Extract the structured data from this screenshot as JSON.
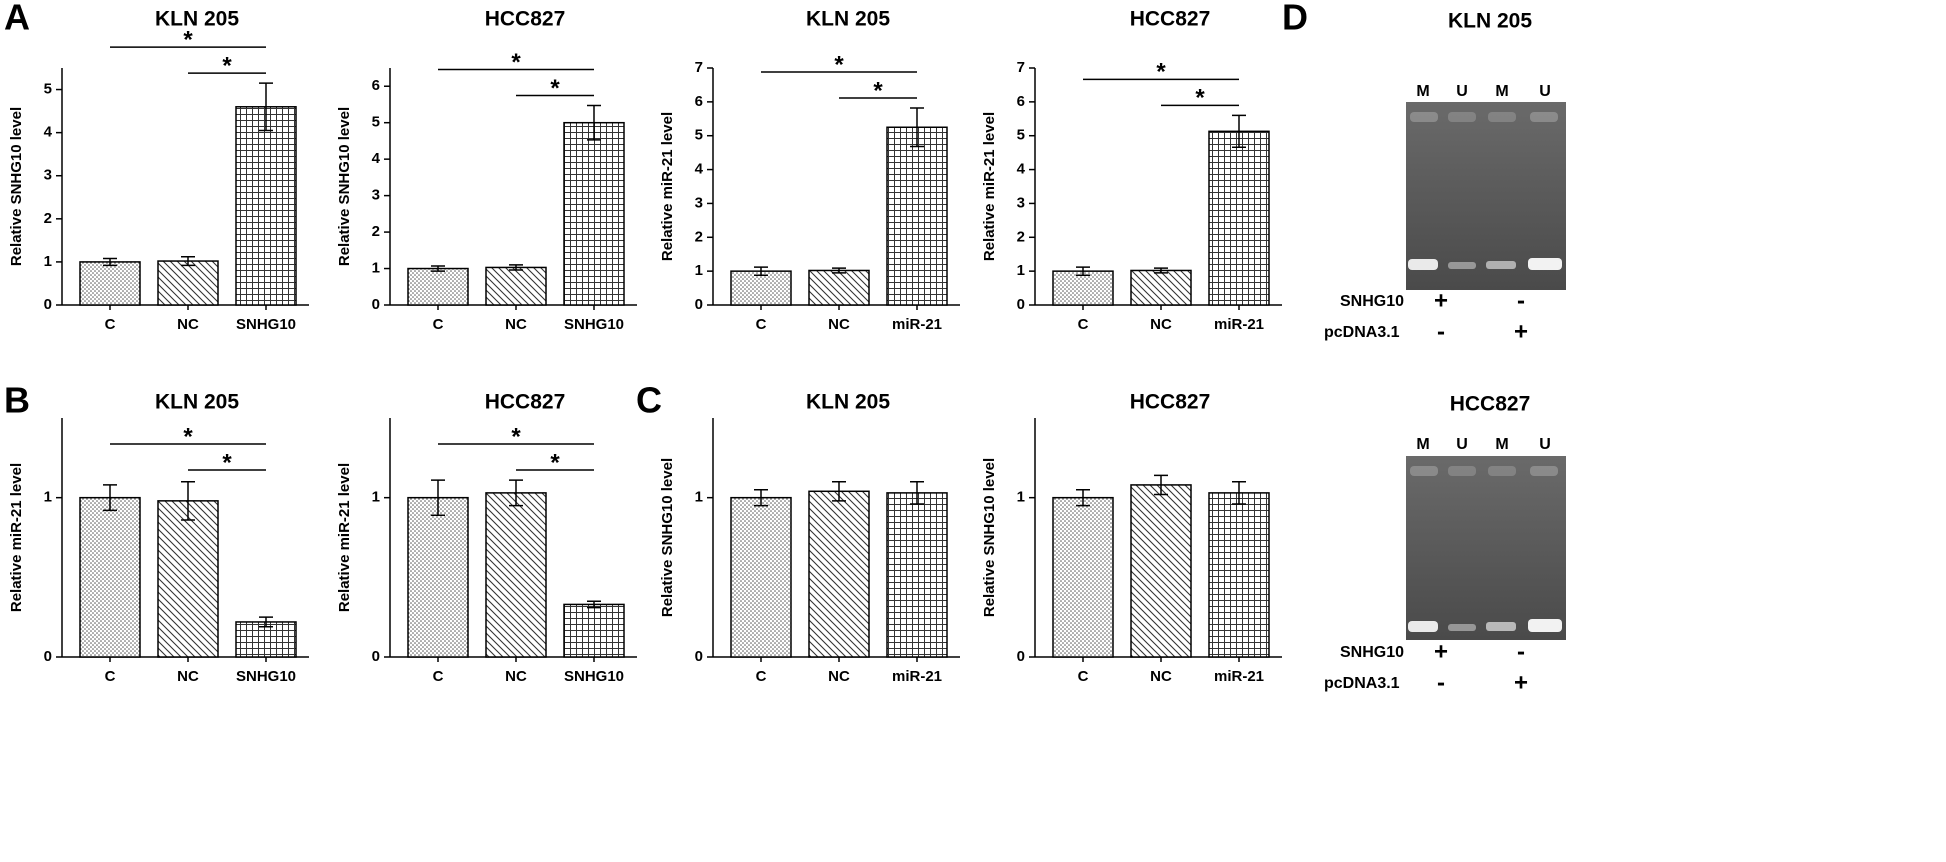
{
  "panels": [
    "A",
    "B",
    "C",
    "D"
  ],
  "chart_data": [
    {
      "type": "bar",
      "title": "KLN 205",
      "y_label": "Relative SNHG10 level",
      "categories": [
        "C",
        "NC",
        "SNHG10"
      ],
      "values": [
        1.0,
        1.02,
        4.6
      ],
      "errors": [
        0.08,
        0.1,
        0.55
      ],
      "ylim": [
        0,
        5.5
      ],
      "yticks": [
        0,
        1,
        2,
        3,
        4,
        5
      ],
      "patterns": [
        "dots",
        "diagonal",
        "grid"
      ],
      "annotations": [
        {
          "text": "*",
          "from": 0,
          "to": 2
        },
        {
          "text": "*",
          "from": 1,
          "to": 2
        }
      ]
    },
    {
      "type": "bar",
      "title": "HCC827",
      "y_label": "Relative SNHG10 level",
      "categories": [
        "C",
        "NC",
        "SNHG10"
      ],
      "values": [
        1.0,
        1.03,
        5.0
      ],
      "errors": [
        0.07,
        0.07,
        0.47
      ],
      "ylim": [
        0,
        6.5
      ],
      "yticks": [
        0,
        1,
        2,
        3,
        4,
        5,
        6
      ],
      "patterns": [
        "dots",
        "diagonal",
        "grid"
      ],
      "annotations": [
        {
          "text": "*",
          "from": 0,
          "to": 2
        },
        {
          "text": "*",
          "from": 1,
          "to": 2
        }
      ]
    },
    {
      "type": "bar",
      "title": "KLN 205",
      "y_label": "Relative miR-21 level",
      "categories": [
        "C",
        "NC",
        "miR-21"
      ],
      "values": [
        1.0,
        1.02,
        5.25
      ],
      "errors": [
        0.12,
        0.07,
        0.57
      ],
      "ylim": [
        0,
        7
      ],
      "yticks": [
        0,
        1,
        2,
        3,
        4,
        5,
        6,
        7
      ],
      "patterns": [
        "dots",
        "diagonal",
        "grid"
      ],
      "annotations": [
        {
          "text": "*",
          "from": 0,
          "to": 2
        },
        {
          "text": "*",
          "from": 1,
          "to": 2
        }
      ]
    },
    {
      "type": "bar",
      "title": "HCC827",
      "y_label": "Relative miR-21 level",
      "categories": [
        "C",
        "NC",
        "miR-21"
      ],
      "values": [
        1.0,
        1.02,
        5.13
      ],
      "errors": [
        0.12,
        0.07,
        0.47
      ],
      "ylim": [
        0,
        7
      ],
      "yticks": [
        0,
        1,
        2,
        3,
        4,
        5,
        6,
        7
      ],
      "patterns": [
        "dots",
        "diagonal",
        "grid"
      ],
      "annotations": [
        {
          "text": "*",
          "from": 0,
          "to": 2
        },
        {
          "text": "*",
          "from": 1,
          "to": 2
        }
      ]
    },
    {
      "type": "bar",
      "title": "KLN 205",
      "y_label": "Relative miR-21 level",
      "categories": [
        "C",
        "NC",
        "SNHG10"
      ],
      "values": [
        1.0,
        0.98,
        0.22
      ],
      "errors": [
        0.08,
        0.12,
        0.03
      ],
      "ylim": [
        0,
        1.5
      ],
      "yticks": [
        0,
        1
      ],
      "patterns": [
        "dots",
        "diagonal",
        "grid"
      ],
      "annotations": [
        {
          "text": "*",
          "from": 0,
          "to": 2
        },
        {
          "text": "*",
          "from": 1,
          "to": 2
        }
      ]
    },
    {
      "type": "bar",
      "title": "HCC827",
      "y_label": "Relative miR-21 level",
      "categories": [
        "C",
        "NC",
        "SNHG10"
      ],
      "values": [
        1.0,
        1.03,
        0.33
      ],
      "errors": [
        0.11,
        0.08,
        0.02
      ],
      "ylim": [
        0,
        1.5
      ],
      "yticks": [
        0,
        1
      ],
      "patterns": [
        "dots",
        "diagonal",
        "grid"
      ],
      "annotations": [
        {
          "text": "*",
          "from": 0,
          "to": 2
        },
        {
          "text": "*",
          "from": 1,
          "to": 2
        }
      ]
    },
    {
      "type": "bar",
      "title": "KLN 205",
      "y_label": "Relative SNHG10 level",
      "categories": [
        "C",
        "NC",
        "miR-21"
      ],
      "values": [
        1.0,
        1.04,
        1.03
      ],
      "errors": [
        0.05,
        0.06,
        0.07
      ],
      "ylim": [
        0,
        1.5
      ],
      "yticks": [
        0,
        1
      ],
      "patterns": [
        "dots",
        "diagonal",
        "grid"
      ],
      "annotations": []
    },
    {
      "type": "bar",
      "title": "HCC827",
      "y_label": "Relative SNHG10 level",
      "categories": [
        "C",
        "NC",
        "miR-21"
      ],
      "values": [
        1.0,
        1.08,
        1.03
      ],
      "errors": [
        0.05,
        0.06,
        0.07
      ],
      "ylim": [
        0,
        1.5
      ],
      "yticks": [
        0,
        1
      ],
      "patterns": [
        "dots",
        "diagonal",
        "grid"
      ],
      "annotations": []
    }
  ],
  "gels": [
    {
      "title": "KLN 205",
      "lanes": [
        "M",
        "U",
        "M",
        "U"
      ],
      "rows": [
        {
          "label": "SNHG10",
          "marks": [
            "+",
            "-"
          ]
        },
        {
          "label": "pcDNA3.1",
          "marks": [
            "-",
            "+"
          ]
        }
      ]
    },
    {
      "title": "HCC827",
      "lanes": [
        "M",
        "U",
        "M",
        "U"
      ],
      "rows": [
        {
          "label": "SNHG10",
          "marks": [
            "+",
            "-"
          ]
        },
        {
          "label": "pcDNA3.1",
          "marks": [
            "-",
            "+"
          ]
        }
      ]
    }
  ]
}
